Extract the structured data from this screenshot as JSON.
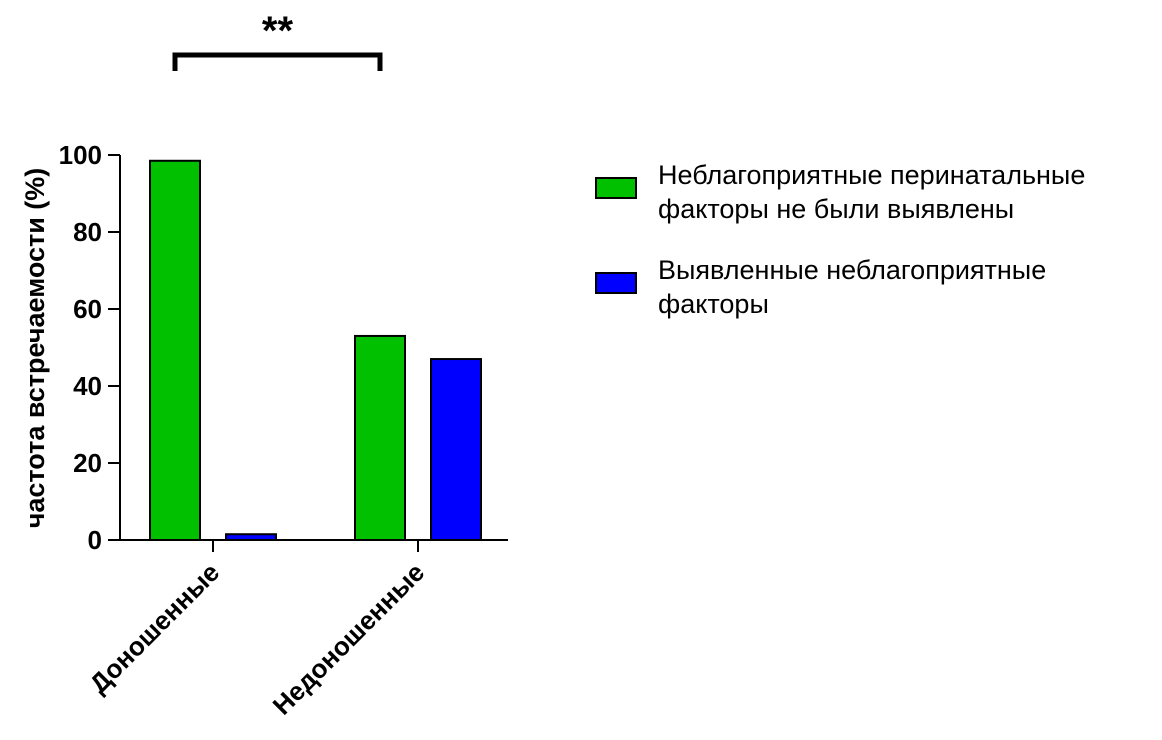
{
  "chart_data": {
    "type": "bar",
    "categories": [
      "Доношенные",
      "Недоношенные"
    ],
    "series": [
      {
        "name": "Неблагоприятные перинатальные факторы не были выявлены",
        "legend_lines": [
          "Неблагоприятные перинатальные",
          "факторы не были выявлены"
        ],
        "color": "#00c000",
        "values": [
          98.5,
          53
        ]
      },
      {
        "name": "Выявленные неблагоприятные факторы",
        "legend_lines": [
          "Выявленные неблагоприятные",
          "факторы"
        ],
        "color": "#0000ff",
        "values": [
          1.5,
          47
        ]
      }
    ],
    "xlabel": "",
    "ylabel": "частота встречаемости (%)",
    "ylim": [
      0,
      100
    ],
    "yticks": [
      0,
      20,
      40,
      60,
      80,
      100
    ],
    "grid": false,
    "legend_position": "right",
    "annotation": {
      "text": "**",
      "from": {
        "category": 0,
        "series": 0
      },
      "to": {
        "category": 1,
        "series": 0
      }
    }
  }
}
